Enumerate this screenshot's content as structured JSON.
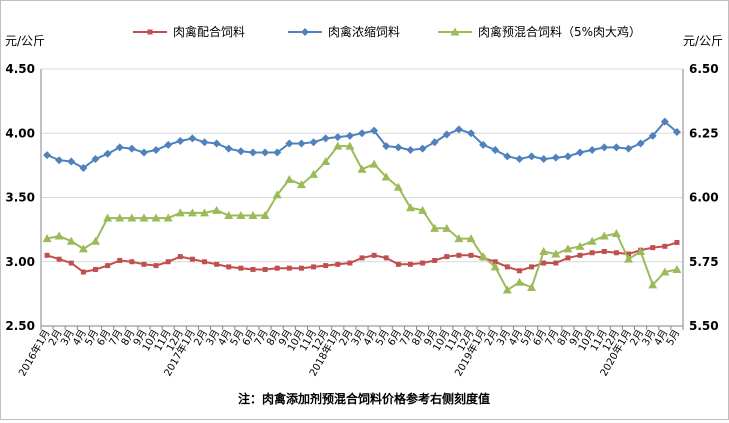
{
  "chart_data": {
    "type": "line",
    "left_unit": "元/公斤",
    "right_unit": "元/公斤",
    "y_left": {
      "min": 2.5,
      "max": 4.5,
      "ticks": [
        "2.50",
        "3.00",
        "3.50",
        "4.00",
        "4.50"
      ]
    },
    "y_right": {
      "min": 5.5,
      "max": 6.5,
      "ticks": [
        "5.50",
        "5.75",
        "6.00",
        "6.25",
        "6.50"
      ]
    },
    "grid": "horizontal",
    "legend_position": "top",
    "x": [
      "2016年1月",
      "2月",
      "3月",
      "4月",
      "5月",
      "6月",
      "7月",
      "8月",
      "9月",
      "10月",
      "11月",
      "12月",
      "2017年1月",
      "2月",
      "3月",
      "4月",
      "5月",
      "6月",
      "7月",
      "8月",
      "9月",
      "10月",
      "11月",
      "12月",
      "2018年1月",
      "2月",
      "3月",
      "4月",
      "5月",
      "6月",
      "7月",
      "8月",
      "9月",
      "10月",
      "11月",
      "12月",
      "2019年1月",
      "2月",
      "3月",
      "4月",
      "5月",
      "6月",
      "7月",
      "8月",
      "9月",
      "10月",
      "11月",
      "12月",
      "2020年1月",
      "2月",
      "3月",
      "4月",
      "5月"
    ],
    "series": [
      {
        "name": "肉禽配合饲料",
        "axis": "left",
        "color": "#c0504d",
        "marker": "square",
        "values": [
          3.05,
          3.02,
          2.99,
          2.92,
          2.94,
          2.97,
          3.01,
          3.0,
          2.98,
          2.97,
          3.0,
          3.04,
          3.02,
          3.0,
          2.98,
          2.96,
          2.95,
          2.94,
          2.94,
          2.95,
          2.95,
          2.95,
          2.96,
          2.97,
          2.98,
          2.99,
          3.03,
          3.05,
          3.03,
          2.98,
          2.98,
          2.99,
          3.01,
          3.04,
          3.05,
          3.05,
          3.03,
          3.0,
          2.96,
          2.93,
          2.96,
          2.99,
          2.99,
          3.03,
          3.05,
          3.07,
          3.08,
          3.07,
          3.06,
          3.09,
          3.11,
          3.12,
          3.15
        ]
      },
      {
        "name": "肉禽浓缩饲料",
        "axis": "left",
        "color": "#4f81bd",
        "marker": "diamond",
        "values": [
          3.83,
          3.79,
          3.78,
          3.73,
          3.8,
          3.84,
          3.89,
          3.88,
          3.85,
          3.87,
          3.91,
          3.94,
          3.96,
          3.93,
          3.92,
          3.88,
          3.86,
          3.85,
          3.85,
          3.85,
          3.92,
          3.92,
          3.93,
          3.96,
          3.97,
          3.98,
          4.0,
          4.02,
          3.9,
          3.89,
          3.87,
          3.88,
          3.93,
          3.99,
          4.03,
          4.0,
          3.91,
          3.87,
          3.82,
          3.8,
          3.82,
          3.8,
          3.81,
          3.82,
          3.85,
          3.87,
          3.89,
          3.89,
          3.88,
          3.92,
          3.98,
          4.09,
          4.01
        ]
      },
      {
        "name": "肉禽预混合饲料（5%肉大鸡）",
        "axis": "right",
        "color": "#9bbb59",
        "marker": "triangle",
        "values": [
          5.84,
          5.85,
          5.83,
          5.8,
          5.83,
          5.92,
          5.92,
          5.92,
          5.92,
          5.92,
          5.92,
          5.94,
          5.94,
          5.94,
          5.95,
          5.93,
          5.93,
          5.93,
          5.93,
          6.01,
          6.07,
          6.05,
          6.09,
          6.14,
          6.2,
          6.2,
          6.11,
          6.13,
          6.08,
          6.04,
          5.96,
          5.95,
          5.88,
          5.88,
          5.84,
          5.84,
          5.77,
          5.73,
          5.64,
          5.67,
          5.65,
          5.79,
          5.78,
          5.8,
          5.81,
          5.83,
          5.85,
          5.86,
          5.76,
          5.79,
          5.66,
          5.71,
          5.72
        ]
      }
    ],
    "note": "注：肉禽添加剂预混合饲料价格参考右侧刻度值"
  }
}
